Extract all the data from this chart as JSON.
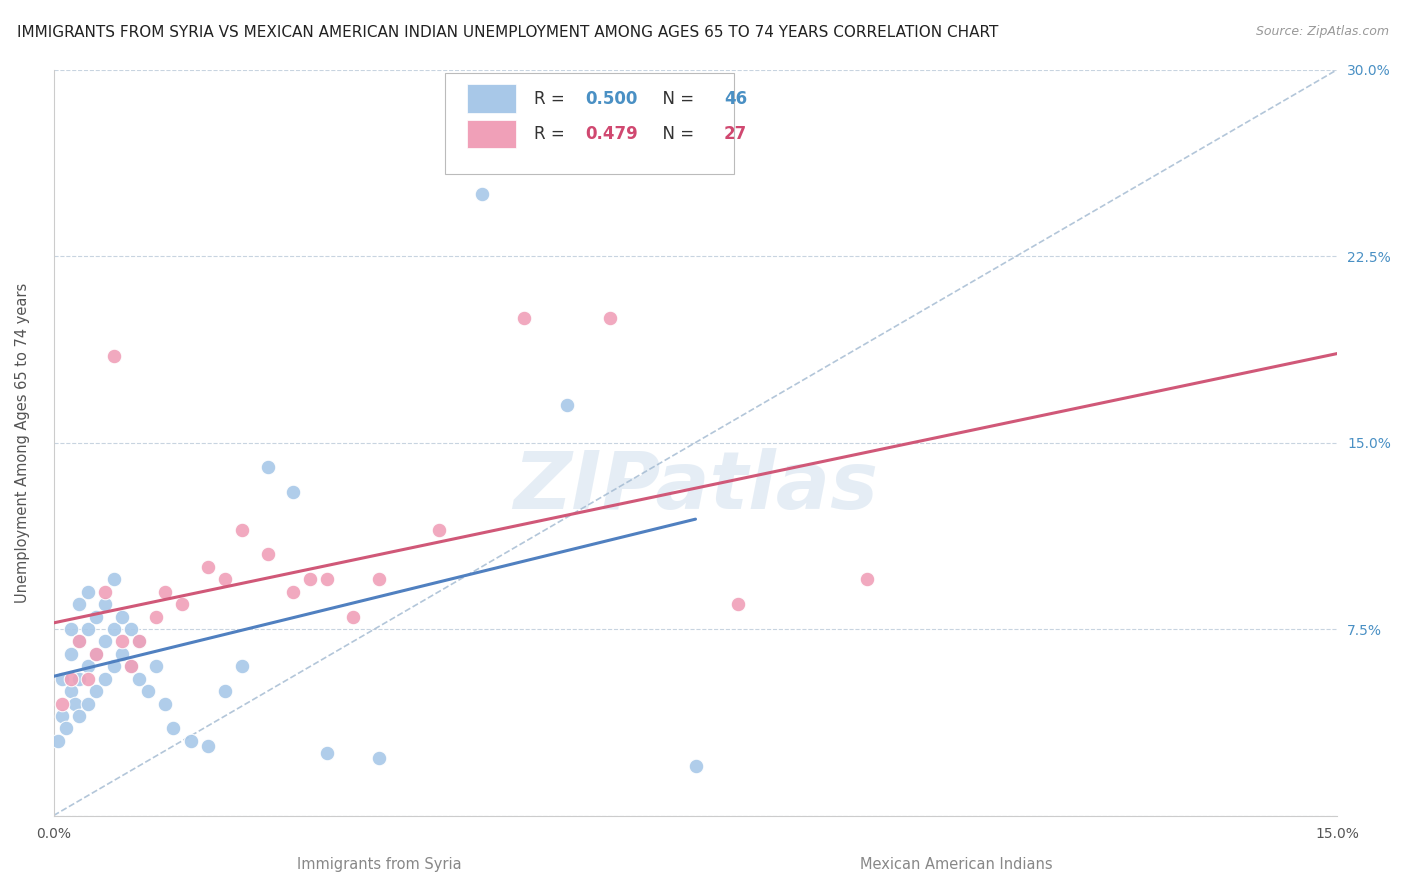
{
  "title": "IMMIGRANTS FROM SYRIA VS MEXICAN AMERICAN INDIAN UNEMPLOYMENT AMONG AGES 65 TO 74 YEARS CORRELATION CHART",
  "source": "Source: ZipAtlas.com",
  "ylabel": "Unemployment Among Ages 65 to 74 years",
  "xlabel_blue": "Immigrants from Syria",
  "xlabel_pink": "Mexican American Indians",
  "xlim": [
    0.0,
    0.15
  ],
  "ylim": [
    0.0,
    0.3
  ],
  "R_blue": 0.5,
  "N_blue": 46,
  "R_pink": 0.479,
  "N_pink": 27,
  "color_blue": "#a8c8e8",
  "color_pink": "#f0a0b8",
  "color_blue_text": "#4a90c4",
  "color_pink_text": "#d04870",
  "color_blue_line": "#5080c0",
  "color_pink_line": "#d05878",
  "color_blue_dashed": "#a0b8d0",
  "watermark": "ZIPatlas",
  "background_color": "#ffffff",
  "grid_color": "#c8d4e0",
  "title_fontsize": 11,
  "axis_label_fontsize": 10.5,
  "tick_fontsize": 10,
  "blue_x": [
    0.0005,
    0.001,
    0.001,
    0.0015,
    0.002,
    0.002,
    0.002,
    0.0025,
    0.003,
    0.003,
    0.003,
    0.003,
    0.004,
    0.004,
    0.004,
    0.004,
    0.005,
    0.005,
    0.005,
    0.006,
    0.006,
    0.006,
    0.007,
    0.007,
    0.007,
    0.008,
    0.008,
    0.009,
    0.009,
    0.01,
    0.01,
    0.011,
    0.012,
    0.013,
    0.014,
    0.016,
    0.018,
    0.02,
    0.022,
    0.025,
    0.028,
    0.032,
    0.038,
    0.05,
    0.06,
    0.075
  ],
  "blue_y": [
    0.03,
    0.04,
    0.055,
    0.035,
    0.05,
    0.065,
    0.075,
    0.045,
    0.04,
    0.055,
    0.07,
    0.085,
    0.045,
    0.06,
    0.075,
    0.09,
    0.05,
    0.065,
    0.08,
    0.055,
    0.07,
    0.085,
    0.06,
    0.075,
    0.095,
    0.065,
    0.08,
    0.06,
    0.075,
    0.055,
    0.07,
    0.05,
    0.06,
    0.045,
    0.035,
    0.03,
    0.028,
    0.05,
    0.06,
    0.14,
    0.13,
    0.025,
    0.023,
    0.25,
    0.165,
    0.02
  ],
  "pink_x": [
    0.001,
    0.002,
    0.003,
    0.004,
    0.005,
    0.006,
    0.007,
    0.008,
    0.009,
    0.01,
    0.012,
    0.013,
    0.015,
    0.018,
    0.02,
    0.022,
    0.025,
    0.028,
    0.03,
    0.032,
    0.035,
    0.038,
    0.045,
    0.055,
    0.065,
    0.08,
    0.095
  ],
  "pink_y": [
    0.045,
    0.055,
    0.07,
    0.055,
    0.065,
    0.09,
    0.185,
    0.07,
    0.06,
    0.07,
    0.08,
    0.09,
    0.085,
    0.1,
    0.095,
    0.115,
    0.105,
    0.09,
    0.095,
    0.095,
    0.08,
    0.095,
    0.115,
    0.2,
    0.2,
    0.085,
    0.095
  ]
}
